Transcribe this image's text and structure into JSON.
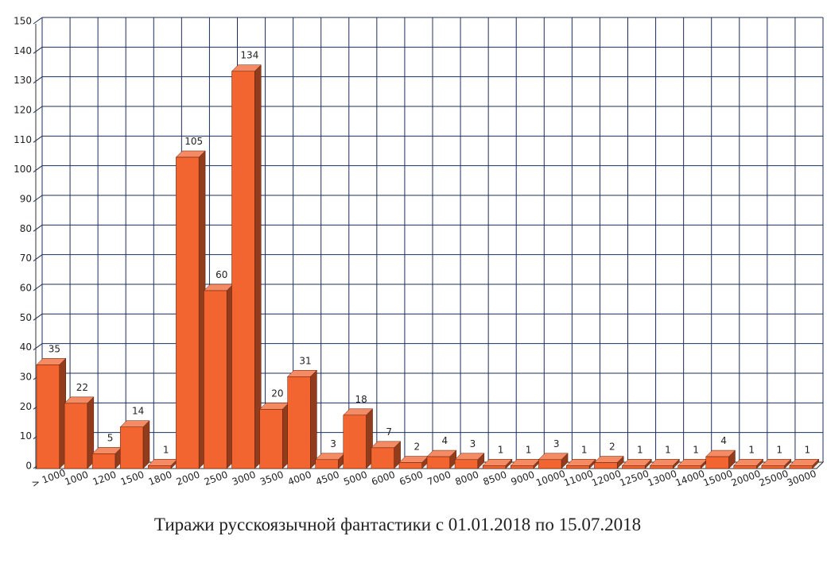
{
  "chart_data": {
    "type": "bar3d",
    "title": "Тиражи русскоязычной фантастики с 01.01.2018 по 15.07.2018",
    "categories": [
      "> 1000",
      "1000",
      "1200",
      "1500",
      "1800",
      "2000",
      "2500",
      "3000",
      "3500",
      "4000",
      "4500",
      "5000",
      "6000",
      "6500",
      "7000",
      "8000",
      "8500",
      "9000",
      "10000",
      "11000",
      "12000",
      "12500",
      "13000",
      "14000",
      "15000",
      "20000",
      "25000",
      "30000"
    ],
    "values": [
      35,
      22,
      5,
      14,
      1,
      105,
      60,
      134,
      20,
      31,
      3,
      18,
      7,
      2,
      4,
      3,
      1,
      1,
      3,
      1,
      2,
      1,
      1,
      1,
      4,
      1,
      1,
      1
    ],
    "color": "#f26430",
    "ylim": [
      0,
      150
    ],
    "yticks": [
      0,
      10,
      20,
      30,
      40,
      50,
      60,
      70,
      80,
      90,
      100,
      110,
      120,
      130,
      140,
      150
    ],
    "grid": true
  }
}
